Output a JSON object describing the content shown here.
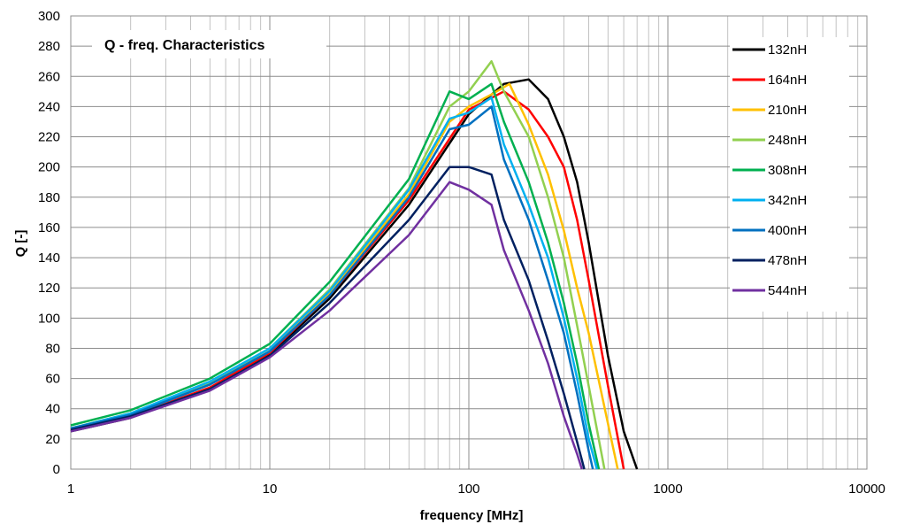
{
  "chart_data": {
    "type": "line",
    "title": "Q - freq. Characteristics",
    "xlabel": "frequency [MHz]",
    "ylabel": "Q [-]",
    "xscale": "log",
    "xlim": [
      1,
      10000
    ],
    "ylim": [
      0,
      300
    ],
    "xticks": [
      1,
      10,
      100,
      1000,
      10000
    ],
    "xtick_labels": [
      "1",
      "10",
      "100",
      "1000",
      "10000"
    ],
    "yticks": [
      0,
      20,
      40,
      60,
      80,
      100,
      120,
      140,
      160,
      180,
      200,
      220,
      240,
      260,
      280,
      300
    ],
    "ytick_labels": [
      "0",
      "20",
      "40",
      "60",
      "80",
      "100",
      "120",
      "140",
      "160",
      "180",
      "200",
      "220",
      "240",
      "260",
      "280",
      "300"
    ],
    "grid": true,
    "legend_position": "top-right",
    "series": [
      {
        "name": "132nH",
        "color": "#000000",
        "x": [
          1,
          2,
          5,
          10,
          20,
          50,
          100,
          150,
          200,
          250,
          300,
          350,
          400,
          500,
          600,
          700
        ],
        "y": [
          25,
          34,
          53,
          76,
          113,
          175,
          235,
          255,
          258,
          245,
          220,
          190,
          150,
          75,
          25,
          0
        ]
      },
      {
        "name": "164nH",
        "color": "#ff0000",
        "x": [
          1,
          2,
          5,
          10,
          20,
          50,
          100,
          150,
          200,
          250,
          300,
          350,
          400,
          500,
          600
        ],
        "y": [
          26,
          35,
          54,
          77,
          115,
          178,
          238,
          250,
          238,
          220,
          200,
          165,
          125,
          55,
          0
        ]
      },
      {
        "name": "210nH",
        "color": "#ffc000",
        "x": [
          1,
          2,
          5,
          10,
          20,
          50,
          80,
          100,
          130,
          160,
          200,
          250,
          300,
          350,
          400,
          500,
          560
        ],
        "y": [
          26,
          36,
          56,
          78,
          117,
          182,
          230,
          240,
          248,
          255,
          228,
          195,
          158,
          120,
          90,
          30,
          0
        ]
      },
      {
        "name": "248nH",
        "color": "#92d050",
        "x": [
          1,
          2,
          5,
          10,
          20,
          50,
          80,
          100,
          130,
          150,
          200,
          250,
          300,
          350,
          400,
          480
        ],
        "y": [
          27,
          37,
          57,
          80,
          119,
          186,
          240,
          250,
          270,
          250,
          220,
          180,
          140,
          95,
          55,
          0
        ]
      },
      {
        "name": "308nH",
        "color": "#00b050",
        "x": [
          1,
          2,
          5,
          10,
          20,
          50,
          80,
          100,
          130,
          150,
          200,
          250,
          300,
          350,
          400,
          450
        ],
        "y": [
          29,
          39,
          60,
          83,
          124,
          192,
          250,
          245,
          255,
          230,
          190,
          150,
          110,
          70,
          30,
          0
        ]
      },
      {
        "name": "342nH",
        "color": "#00b0f0",
        "x": [
          1,
          2,
          5,
          10,
          20,
          50,
          80,
          100,
          130,
          150,
          200,
          250,
          300,
          350,
          400,
          440
        ],
        "y": [
          27,
          37,
          58,
          80,
          118,
          185,
          232,
          236,
          246,
          215,
          175,
          140,
          100,
          60,
          20,
          0
        ]
      },
      {
        "name": "400nH",
        "color": "#0070c0",
        "x": [
          1,
          2,
          5,
          10,
          20,
          50,
          80,
          100,
          130,
          150,
          200,
          250,
          300,
          350,
          400,
          420
        ],
        "y": [
          27,
          36,
          56,
          78,
          115,
          180,
          225,
          228,
          240,
          205,
          165,
          125,
          90,
          50,
          12,
          0
        ]
      },
      {
        "name": "478nH",
        "color": "#002060",
        "x": [
          1,
          2,
          5,
          10,
          20,
          50,
          80,
          100,
          130,
          150,
          200,
          250,
          300,
          350,
          380
        ],
        "y": [
          26,
          35,
          53,
          75,
          110,
          165,
          200,
          200,
          195,
          165,
          125,
          85,
          50,
          18,
          0
        ]
      },
      {
        "name": "544nH",
        "color": "#7030a0",
        "x": [
          1,
          2,
          5,
          10,
          20,
          50,
          80,
          100,
          130,
          150,
          200,
          250,
          300,
          350,
          370
        ],
        "y": [
          25,
          34,
          52,
          74,
          105,
          155,
          190,
          185,
          175,
          145,
          105,
          70,
          35,
          10,
          0
        ]
      }
    ]
  }
}
